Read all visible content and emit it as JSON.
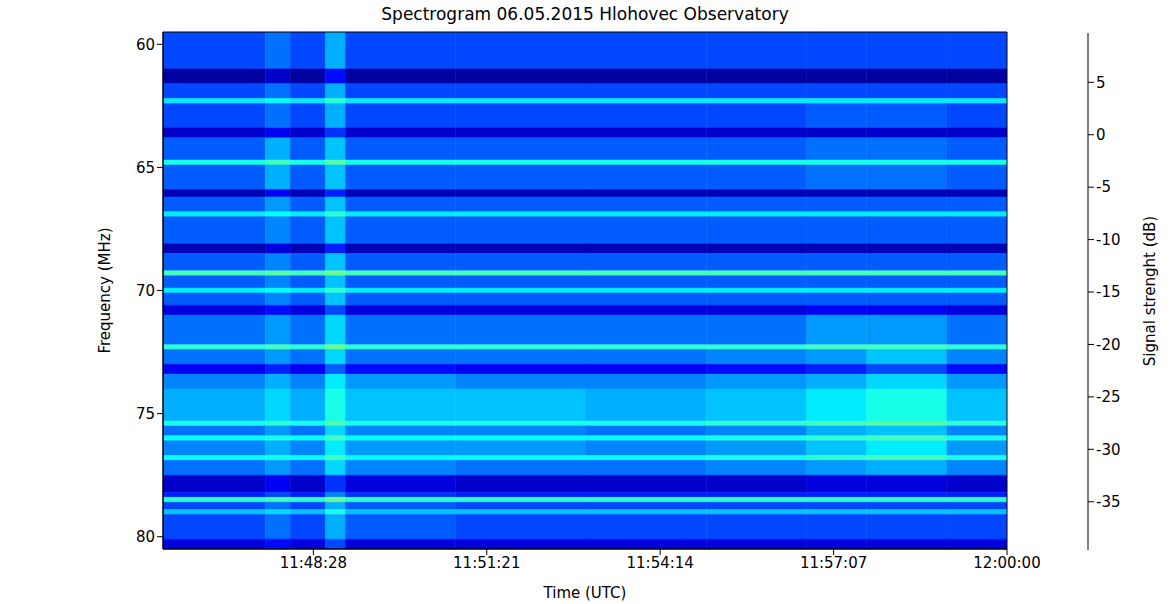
{
  "chart_data": {
    "type": "heatmap",
    "title": "Spectrogram 06.05.2015 Hlohovec Observatory",
    "x_label": "Time (UTC)",
    "y_label": "Frequency (MHz)",
    "x_edges": [
      42358,
      42460,
      42485,
      42520,
      42540,
      42650,
      42780,
      42900,
      43000,
      43060,
      43140,
      43200
    ],
    "y_edges": [
      59.5,
      61.0,
      61.6,
      62.2,
      62.4,
      63.4,
      63.8,
      64.7,
      64.9,
      65.9,
      66.2,
      66.8,
      67.0,
      68.1,
      68.5,
      69.2,
      69.4,
      69.9,
      70.1,
      70.6,
      71.0,
      72.2,
      72.4,
      73.0,
      73.4,
      74.0,
      75.3,
      75.5,
      75.9,
      76.1,
      76.7,
      76.9,
      77.5,
      78.2,
      78.4,
      78.6,
      78.9,
      79.1,
      80.1,
      80.5
    ],
    "cells": [
      [
        -30,
        -28,
        -30,
        -25,
        -30,
        -30,
        -30,
        -30,
        -30,
        -30,
        -30
      ],
      [
        -38,
        -36,
        -38,
        -33,
        -38,
        -38,
        -38,
        -38,
        -38,
        -38,
        -38
      ],
      [
        -30,
        -28,
        -30,
        -25,
        -30,
        -30,
        -30,
        -30,
        -30,
        -30,
        -30
      ],
      [
        -22,
        -21,
        -22,
        -19,
        -22,
        -22,
        -22,
        -22,
        -22,
        -22,
        -22
      ],
      [
        -30,
        -28,
        -30,
        -25,
        -30,
        -30,
        -30,
        -30,
        -29,
        -29,
        -30
      ],
      [
        -36,
        -34,
        -36,
        -31,
        -36,
        -36,
        -36,
        -36,
        -36,
        -36,
        -36
      ],
      [
        -29,
        -25,
        -29,
        -24,
        -29,
        -29,
        -29,
        -29,
        -28,
        -28,
        -29
      ],
      [
        -20,
        -18,
        -20,
        -17,
        -20,
        -20,
        -20,
        -20,
        -20,
        -20,
        -20
      ],
      [
        -29,
        -25,
        -29,
        -24,
        -29,
        -29,
        -29,
        -29,
        -28,
        -28,
        -29
      ],
      [
        -37,
        -34,
        -37,
        -32,
        -37,
        -37,
        -37,
        -37,
        -37,
        -37,
        -37
      ],
      [
        -29,
        -26,
        -29,
        -24,
        -29,
        -29,
        -29,
        -29,
        -29,
        -29,
        -29
      ],
      [
        -22,
        -21,
        -22,
        -19,
        -22,
        -22,
        -22,
        -22,
        -22,
        -22,
        -22
      ],
      [
        -29,
        -27,
        -29,
        -24,
        -29,
        -29,
        -29,
        -29,
        -29,
        -29,
        -29
      ],
      [
        -37,
        -35,
        -37,
        -32,
        -37,
        -37,
        -37,
        -37,
        -37,
        -37,
        -37
      ],
      [
        -29,
        -27,
        -29,
        -24,
        -29,
        -29,
        -29,
        -29,
        -29,
        -29,
        -29
      ],
      [
        -18,
        -17,
        -18,
        -16,
        -18,
        -18,
        -18,
        -18,
        -18,
        -18,
        -18
      ],
      [
        -29,
        -27,
        -29,
        -24,
        -29,
        -29,
        -29,
        -29,
        -29,
        -29,
        -29
      ],
      [
        -22,
        -21,
        -22,
        -19,
        -22,
        -22,
        -22,
        -22,
        -22,
        -22,
        -22
      ],
      [
        -29,
        -27,
        -29,
        -24,
        -29,
        -29,
        -29,
        -29,
        -29,
        -29,
        -29
      ],
      [
        -35,
        -33,
        -35,
        -30,
        -35,
        -35,
        -35,
        -35,
        -34,
        -34,
        -35
      ],
      [
        -28,
        -26,
        -28,
        -23,
        -28,
        -28,
        -28,
        -28,
        -26,
        -26,
        -28
      ],
      [
        -19,
        -18,
        -19,
        -16,
        -19,
        -19,
        -19,
        -19,
        -18,
        -18,
        -19
      ],
      [
        -28,
        -26,
        -28,
        -23,
        -28,
        -28,
        -28,
        -27,
        -26,
        -24,
        -27
      ],
      [
        -34,
        -32,
        -34,
        -29,
        -33,
        -34,
        -34,
        -33,
        -32,
        -30,
        -33
      ],
      [
        -27,
        -25,
        -27,
        -22,
        -26,
        -27,
        -27,
        -26,
        -25,
        -23,
        -26
      ],
      [
        -25,
        -23,
        -25,
        -20,
        -24,
        -24,
        -25,
        -24,
        -22,
        -20,
        -24
      ],
      [
        -20,
        -19,
        -20,
        -17,
        -20,
        -20,
        -20,
        -19,
        -18,
        -17,
        -19
      ],
      [
        -28,
        -26,
        -28,
        -23,
        -27,
        -27,
        -28,
        -27,
        -25,
        -24,
        -27
      ],
      [
        -21,
        -20,
        -21,
        -18,
        -21,
        -21,
        -21,
        -20,
        -19,
        -18,
        -20
      ],
      [
        -27,
        -25,
        -27,
        -22,
        -26,
        -26,
        -27,
        -26,
        -24,
        -22,
        -26
      ],
      [
        -21,
        -20,
        -21,
        -18,
        -21,
        -21,
        -21,
        -20,
        -19,
        -18,
        -20
      ],
      [
        -28,
        -26,
        -28,
        -23,
        -27,
        -28,
        -28,
        -27,
        -26,
        -25,
        -27
      ],
      [
        -36,
        -34,
        -36,
        -31,
        -35,
        -36,
        -36,
        -36,
        -35,
        -35,
        -36
      ],
      [
        -32,
        -30,
        -32,
        -27,
        -31,
        -32,
        -32,
        -32,
        -32,
        -32,
        -32
      ],
      [
        -19,
        -18,
        -19,
        -16,
        -19,
        -19,
        -19,
        -19,
        -19,
        -19,
        -19
      ],
      [
        -30,
        -28,
        -30,
        -25,
        -29,
        -30,
        -30,
        -30,
        -30,
        -30,
        -30
      ],
      [
        -24,
        -23,
        -24,
        -20,
        -24,
        -24,
        -24,
        -24,
        -24,
        -24,
        -24
      ],
      [
        -30,
        -28,
        -30,
        -25,
        -29,
        -30,
        -30,
        -30,
        -30,
        -30,
        -30
      ],
      [
        -35,
        -33,
        -35,
        -30,
        -35,
        -35,
        -35,
        -35,
        -35,
        -35,
        -35
      ]
    ],
    "xlim": [
      42358,
      43200
    ],
    "xticks": [
      {
        "value": 42508,
        "label": "11:48:28"
      },
      {
        "value": 42681,
        "label": "11:51:21"
      },
      {
        "value": 42854,
        "label": "11:54:14"
      },
      {
        "value": 43027,
        "label": "11:57:07"
      },
      {
        "value": 43200,
        "label": "12:00:00"
      }
    ],
    "ylim": [
      59.5,
      80.5
    ],
    "yticks": [
      60,
      65,
      70,
      75,
      80
    ],
    "colorbar": {
      "label": "Signal strenght (dB)",
      "lim": [
        -39.6,
        9.7
      ],
      "ticks": [
        5,
        0,
        -5,
        -10,
        -15,
        -20,
        -25,
        -30,
        -35
      ]
    },
    "grid": false
  }
}
